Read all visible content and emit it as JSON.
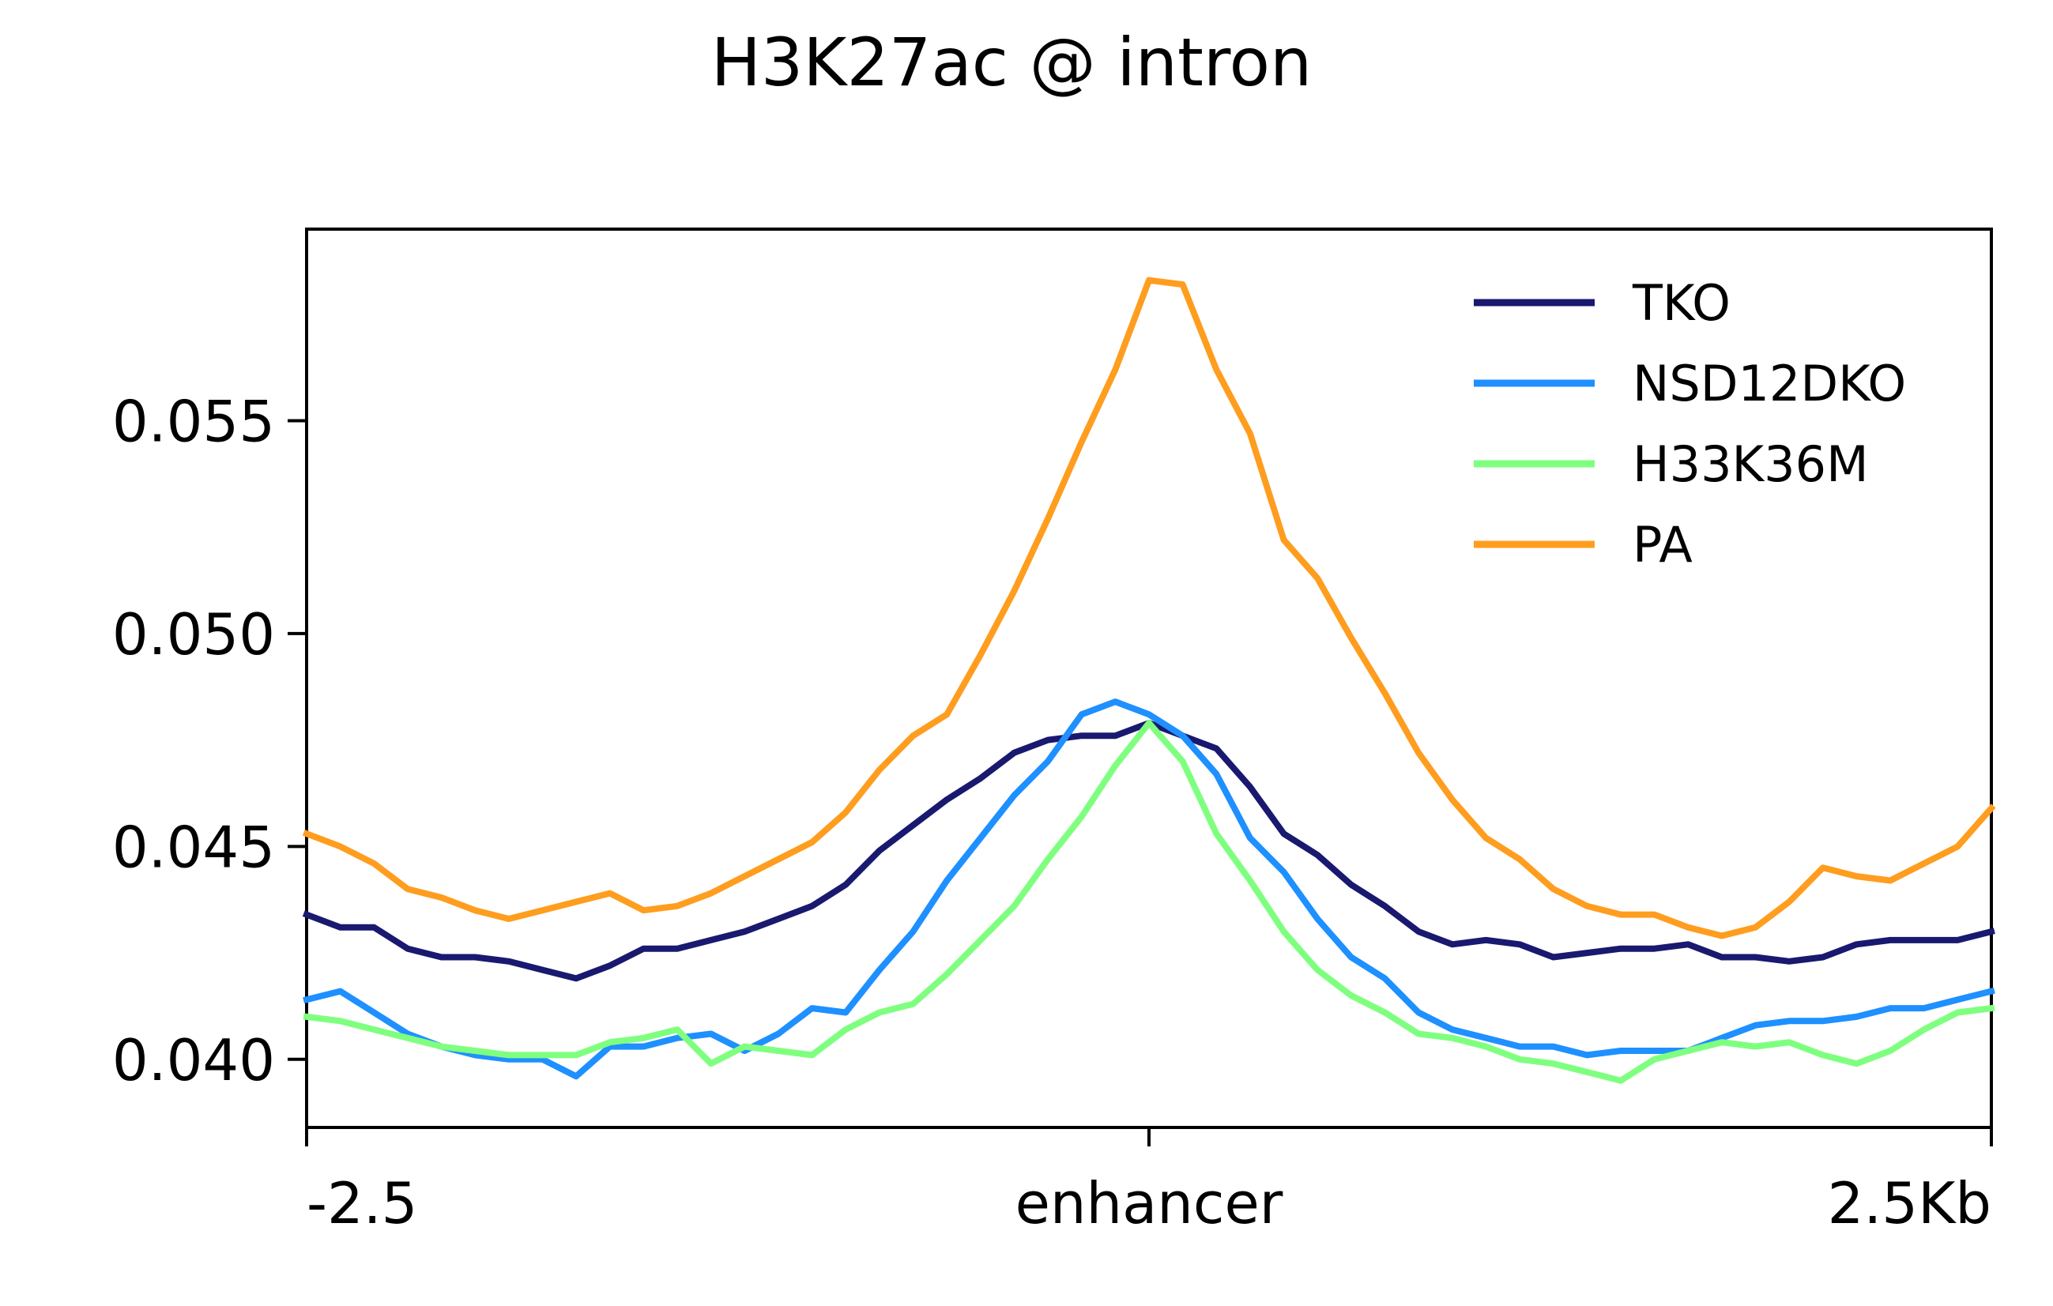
{
  "chart_data": {
    "type": "line",
    "title": "H3K27ac @ intron",
    "xlabel": "",
    "ylabel": "",
    "x_range": [
      -2.5,
      2.5
    ],
    "x_ticks": [
      {
        "value": -2.5,
        "label": "-2.5"
      },
      {
        "value": 0,
        "label": "enhancer"
      },
      {
        "value": 2.5,
        "label": "2.5Kb"
      }
    ],
    "ylim": [
      0.0384,
      0.0595
    ],
    "y_ticks": [
      {
        "value": 0.04,
        "label": "0.040"
      },
      {
        "value": 0.045,
        "label": "0.045"
      },
      {
        "value": 0.05,
        "label": "0.050"
      },
      {
        "value": 0.055,
        "label": "0.055"
      }
    ],
    "grid": false,
    "legend_position": "top-right",
    "x": [
      -2.5,
      -2.4,
      -2.3,
      -2.2,
      -2.1,
      -2.0,
      -1.9,
      -1.8,
      -1.7,
      -1.6,
      -1.5,
      -1.4,
      -1.3,
      -1.2,
      -1.1,
      -1.0,
      -0.9,
      -0.8,
      -0.7,
      -0.6,
      -0.5,
      -0.4,
      -0.3,
      -0.2,
      -0.1,
      0.0,
      0.1,
      0.2,
      0.3,
      0.4,
      0.5,
      0.6,
      0.7,
      0.8,
      0.9,
      1.0,
      1.1,
      1.2,
      1.3,
      1.4,
      1.5,
      1.6,
      1.7,
      1.8,
      1.9,
      2.0,
      2.1,
      2.2,
      2.3,
      2.4,
      2.5
    ],
    "series": [
      {
        "name": "TKO",
        "color": "#191970",
        "values": [
          0.0434,
          0.0431,
          0.0431,
          0.0426,
          0.0424,
          0.0424,
          0.0423,
          0.0421,
          0.0419,
          0.0422,
          0.0426,
          0.0426,
          0.0428,
          0.043,
          0.0433,
          0.0436,
          0.0441,
          0.0449,
          0.0455,
          0.0461,
          0.0466,
          0.0472,
          0.0475,
          0.0476,
          0.0476,
          0.0479,
          0.0476,
          0.0473,
          0.0464,
          0.0453,
          0.0448,
          0.0441,
          0.0436,
          0.043,
          0.0427,
          0.0428,
          0.0427,
          0.0424,
          0.0425,
          0.0426,
          0.0426,
          0.0427,
          0.0424,
          0.0424,
          0.0423,
          0.0424,
          0.0427,
          0.0428,
          0.0428,
          0.0428,
          0.043
        ]
      },
      {
        "name": "NSD12DKO",
        "color": "#1e90ff",
        "values": [
          0.0414,
          0.0416,
          0.0411,
          0.0406,
          0.0403,
          0.0401,
          0.04,
          0.04,
          0.0396,
          0.0403,
          0.0403,
          0.0405,
          0.0406,
          0.0402,
          0.0406,
          0.0412,
          0.0411,
          0.0421,
          0.043,
          0.0442,
          0.0452,
          0.0462,
          0.047,
          0.0481,
          0.0484,
          0.0481,
          0.0476,
          0.0467,
          0.0452,
          0.0444,
          0.0433,
          0.0424,
          0.0419,
          0.0411,
          0.0407,
          0.0405,
          0.0403,
          0.0403,
          0.0401,
          0.0402,
          0.0402,
          0.0402,
          0.0405,
          0.0408,
          0.0409,
          0.0409,
          0.041,
          0.0412,
          0.0412,
          0.0414,
          0.0416
        ]
      },
      {
        "name": "H33K36M",
        "color": "#7fff7f",
        "values": [
          0.041,
          0.0409,
          0.0407,
          0.0405,
          0.0403,
          0.0402,
          0.0401,
          0.0401,
          0.0401,
          0.0404,
          0.0405,
          0.0407,
          0.0399,
          0.0403,
          0.0402,
          0.0401,
          0.0407,
          0.0411,
          0.0413,
          0.042,
          0.0428,
          0.0436,
          0.0447,
          0.0457,
          0.0469,
          0.0479,
          0.047,
          0.0453,
          0.0442,
          0.043,
          0.0421,
          0.0415,
          0.0411,
          0.0406,
          0.0405,
          0.0403,
          0.04,
          0.0399,
          0.0397,
          0.0395,
          0.04,
          0.0402,
          0.0404,
          0.0403,
          0.0404,
          0.0401,
          0.0399,
          0.0402,
          0.0407,
          0.0411,
          0.0412
        ]
      },
      {
        "name": "PA",
        "color": "#ff9d1f",
        "values": [
          0.0453,
          0.045,
          0.0446,
          0.044,
          0.0438,
          0.0435,
          0.0433,
          0.0435,
          0.0437,
          0.0439,
          0.0435,
          0.0436,
          0.0439,
          0.0443,
          0.0447,
          0.0451,
          0.0458,
          0.0468,
          0.0476,
          0.0481,
          0.0495,
          0.051,
          0.0527,
          0.0545,
          0.0562,
          0.0583,
          0.0582,
          0.0562,
          0.0547,
          0.0522,
          0.0513,
          0.0499,
          0.0486,
          0.0472,
          0.0461,
          0.0452,
          0.0447,
          0.044,
          0.0436,
          0.0434,
          0.0434,
          0.0431,
          0.0429,
          0.0431,
          0.0437,
          0.0445,
          0.0443,
          0.0442,
          0.0446,
          0.045,
          0.0459
        ]
      }
    ]
  }
}
